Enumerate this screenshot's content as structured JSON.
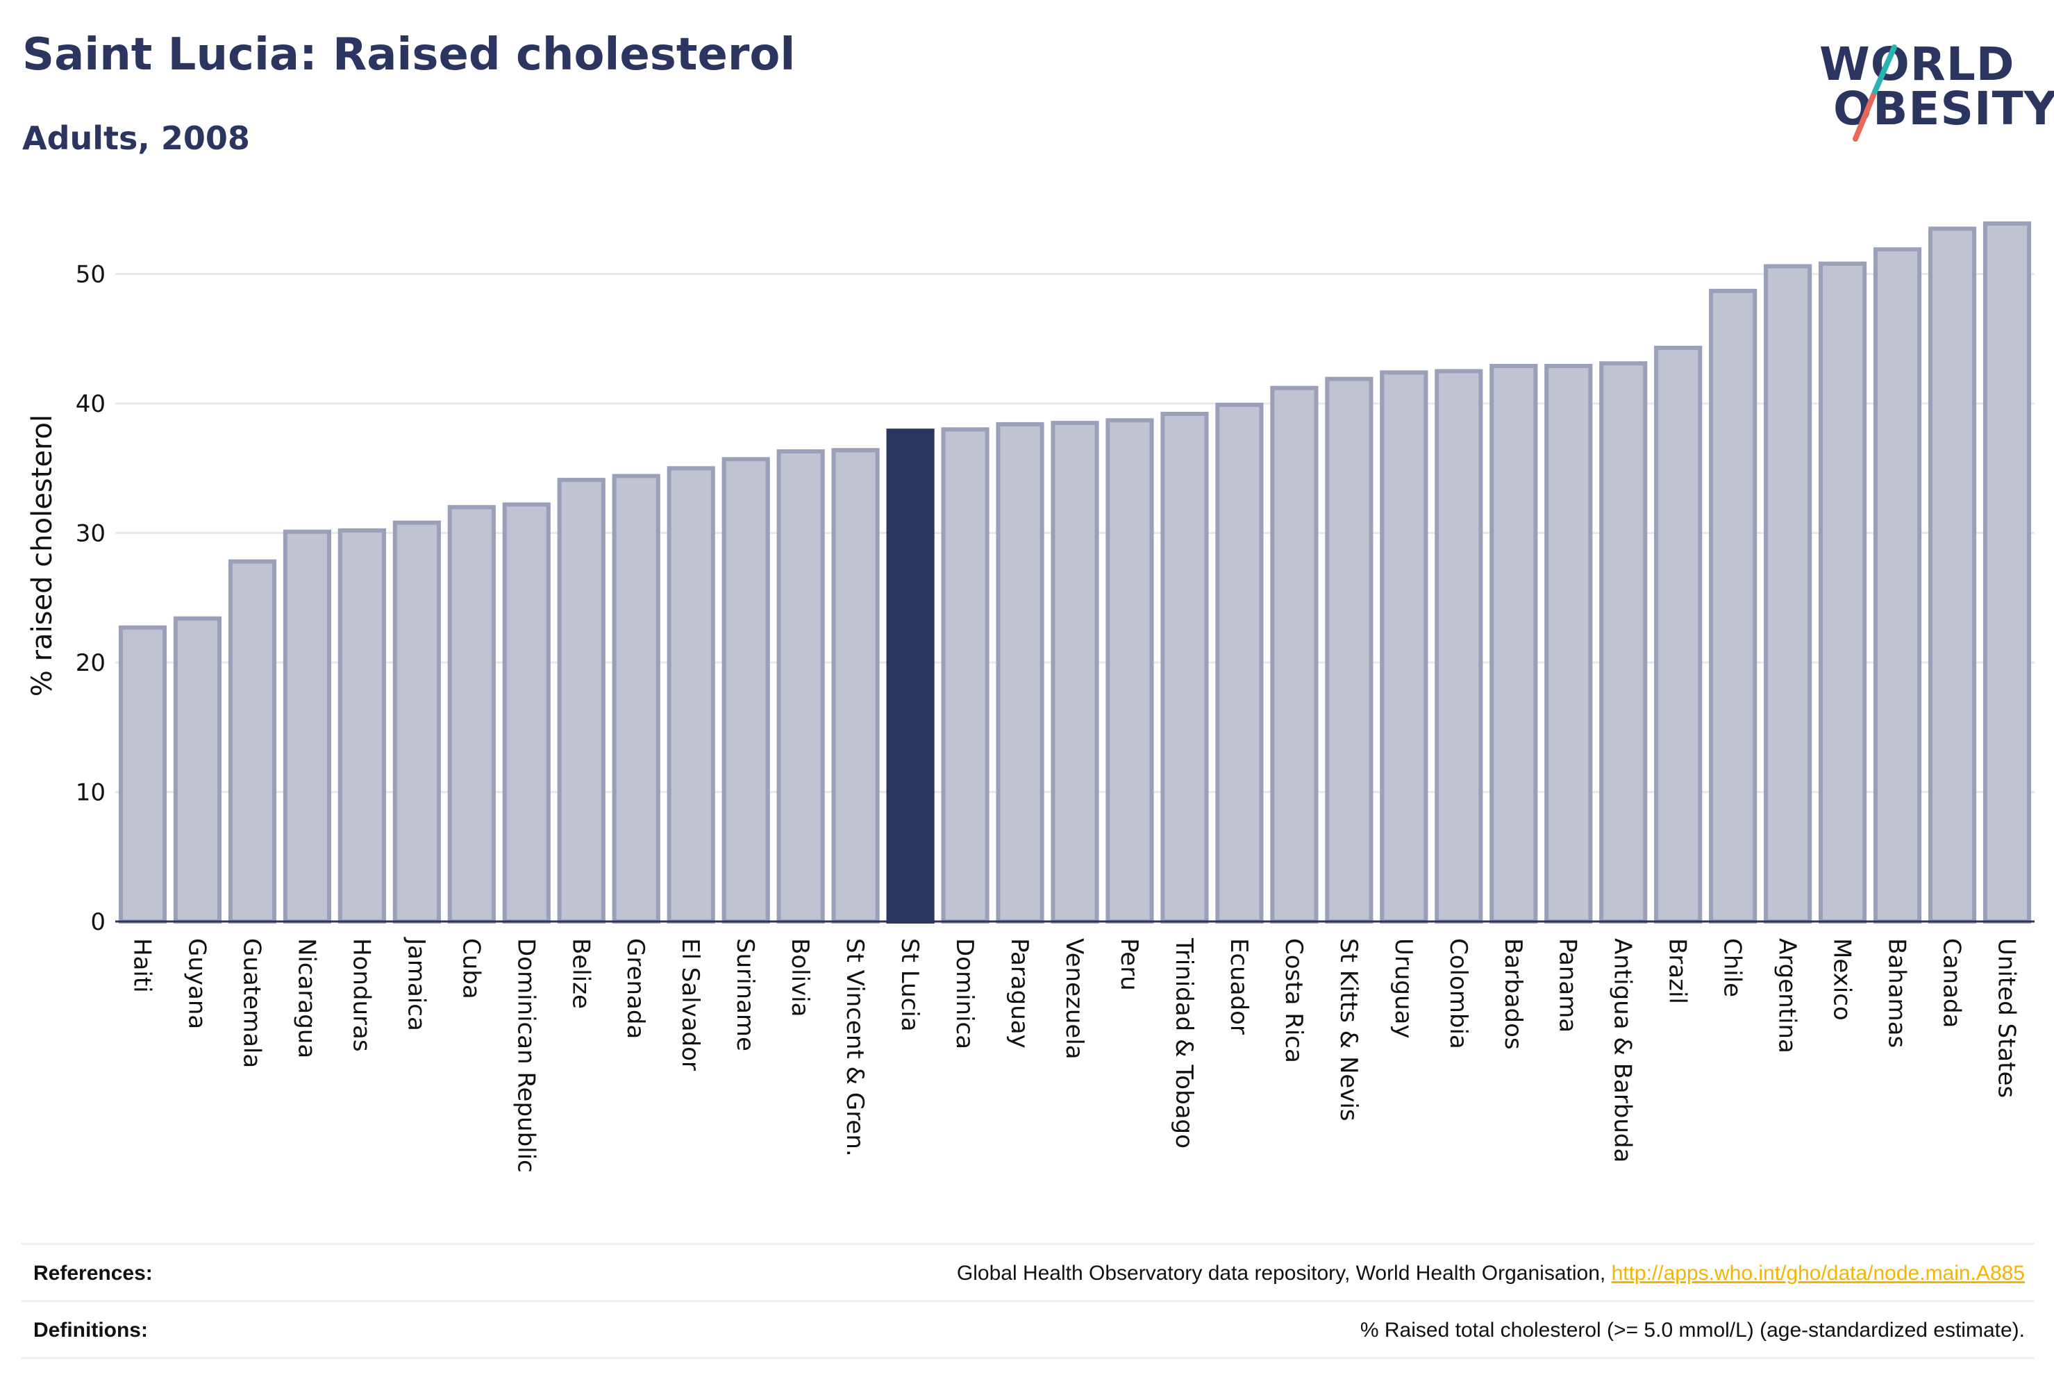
{
  "header": {
    "title": "Saint Lucia: Raised cholesterol",
    "subtitle": "Adults, 2008",
    "logo_line1": "WORLD",
    "logo_line2": "OBESITY"
  },
  "colors": {
    "title": "#2a3560",
    "bar_fill": "#c0c3d0",
    "bar_stroke": "#9aa0ba",
    "highlight_fill": "#2a3560",
    "logo_teal": "#2bb3b1",
    "logo_coral": "#e8685a",
    "link": "#f5b400"
  },
  "chart_data": {
    "type": "bar",
    "ylabel": "% raised cholesterol",
    "xlabel": "",
    "ylim": [
      0,
      54
    ],
    "yticks": [
      0,
      10,
      20,
      30,
      40,
      50
    ],
    "grid": true,
    "highlight": "St Lucia",
    "categories": [
      "Haiti",
      "Guyana",
      "Guatemala",
      "Nicaragua",
      "Honduras",
      "Jamaica",
      "Cuba",
      "Dominican Republic",
      "Belize",
      "Grenada",
      "El Salvador",
      "Suriname",
      "Bolivia",
      "St Vincent & Gren.",
      "St Lucia",
      "Dominica",
      "Paraguay",
      "Venezuela",
      "Peru",
      "Trinidad & Tobago",
      "Ecuador",
      "Costa Rica",
      "St Kitts & Nevis",
      "Uruguay",
      "Colombia",
      "Barbados",
      "Panama",
      "Antigua & Barbuda",
      "Brazil",
      "Chile",
      "Argentina",
      "Mexico",
      "Bahamas",
      "Canada",
      "United States"
    ],
    "values": [
      22.7,
      23.4,
      27.8,
      30.1,
      30.2,
      30.8,
      32.0,
      32.2,
      34.1,
      34.4,
      35.0,
      35.7,
      36.3,
      36.4,
      37.9,
      38.0,
      38.4,
      38.5,
      38.7,
      39.2,
      39.9,
      41.2,
      41.9,
      42.4,
      42.5,
      42.9,
      42.9,
      43.1,
      44.3,
      48.7,
      50.6,
      50.8,
      51.9,
      53.5,
      53.9
    ]
  },
  "footer": {
    "references_label": "References:",
    "references_text": "Global Health Observatory data repository, World Health Organisation, ",
    "references_link": "http://apps.who.int/gho/data/node.main.A885",
    "definitions_label": "Definitions:",
    "definitions_text": "% Raised total cholesterol (>= 5.0 mmol/L) (age-standardized estimate)."
  }
}
